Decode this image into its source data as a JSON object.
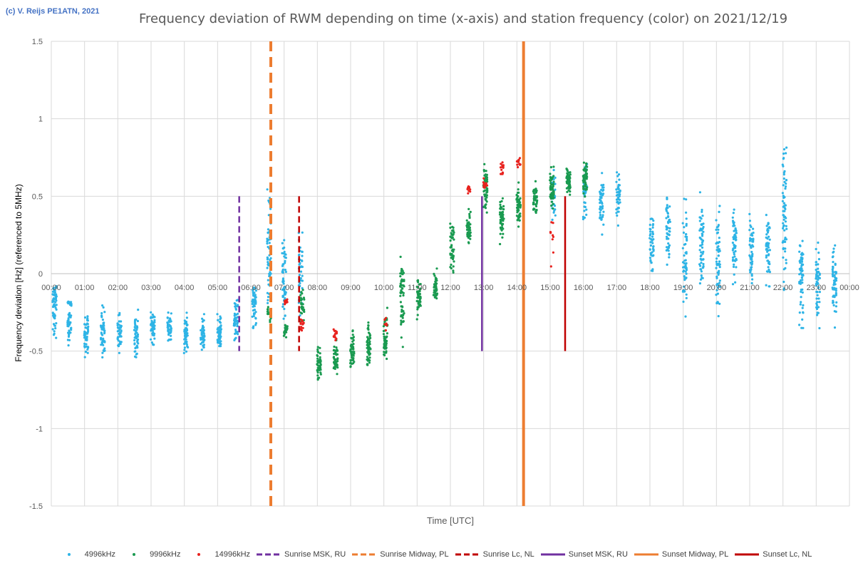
{
  "copyright": "(c) V. Reijs  PE1ATN, 2021",
  "chart_data": {
    "type": "scatter",
    "title": "Frequency deviation of RWM depending on time (x-axis) and station frequency (color) on 2021/12/19",
    "xlabel": "Time [UTC]",
    "ylabel": "Frequency deviation [Hz] (referenced to 5MHz)",
    "ylim": [
      -1.5,
      1.5
    ],
    "yticks": [
      "1.5",
      "1",
      "0.5",
      "0",
      "-0.5",
      "-1",
      "-1.5"
    ],
    "xlim_hours": [
      0,
      24
    ],
    "xticks": [
      "00:00",
      "01:00",
      "02:00",
      "03:00",
      "04:00",
      "05:00",
      "06:00",
      "07:00",
      "08:00",
      "09:00",
      "10:00",
      "11:00",
      "12:00",
      "13:00",
      "14:00",
      "15:00",
      "16:00",
      "17:00",
      "18:00",
      "19:00",
      "20:00",
      "21:00",
      "22:00",
      "23:00",
      "00:00"
    ],
    "grid": true,
    "legend_position": "bottom",
    "colors": {
      "4996kHz": "#2eb4e6",
      "9996kHz": "#1a9a50",
      "14996kHz": "#e8221e",
      "purple": "#7030a0",
      "orange": "#ed7d31",
      "darkred": "#c00000"
    },
    "series": [
      {
        "name": "4996kHz",
        "color": "#2eb4e6",
        "clusters": [
          {
            "t": 0.1,
            "mean": -0.2,
            "spread": 0.15,
            "n": 60
          },
          {
            "t": 0.55,
            "mean": -0.3,
            "spread": 0.12,
            "n": 50
          },
          {
            "t": 1.05,
            "mean": -0.38,
            "spread": 0.12,
            "n": 50
          },
          {
            "t": 1.55,
            "mean": -0.38,
            "spread": 0.12,
            "n": 50
          },
          {
            "t": 2.05,
            "mean": -0.38,
            "spread": 0.1,
            "n": 45
          },
          {
            "t": 2.55,
            "mean": -0.4,
            "spread": 0.12,
            "n": 45
          },
          {
            "t": 3.05,
            "mean": -0.35,
            "spread": 0.1,
            "n": 45
          },
          {
            "t": 3.55,
            "mean": -0.35,
            "spread": 0.08,
            "n": 40
          },
          {
            "t": 4.05,
            "mean": -0.38,
            "spread": 0.1,
            "n": 45
          },
          {
            "t": 4.55,
            "mean": -0.38,
            "spread": 0.1,
            "n": 45
          },
          {
            "t": 5.05,
            "mean": -0.38,
            "spread": 0.1,
            "n": 45
          },
          {
            "t": 5.55,
            "mean": -0.3,
            "spread": 0.12,
            "n": 50
          },
          {
            "t": 6.1,
            "mean": -0.2,
            "spread": 0.15,
            "n": 50
          },
          {
            "t": 6.55,
            "mean": 0.15,
            "spread": 0.25,
            "n": 60
          },
          {
            "t": 7.0,
            "mean": -0.05,
            "spread": 0.2,
            "n": 55
          },
          {
            "t": 7.5,
            "mean": 0.0,
            "spread": 0.2,
            "n": 40
          },
          {
            "t": 15.1,
            "mean": 0.5,
            "spread": 0.15,
            "n": 30
          },
          {
            "t": 16.05,
            "mean": 0.5,
            "spread": 0.15,
            "n": 40
          },
          {
            "t": 16.55,
            "mean": 0.45,
            "spread": 0.15,
            "n": 50
          },
          {
            "t": 17.05,
            "mean": 0.5,
            "spread": 0.12,
            "n": 45
          },
          {
            "t": 18.05,
            "mean": 0.2,
            "spread": 0.15,
            "n": 45
          },
          {
            "t": 18.55,
            "mean": 0.3,
            "spread": 0.2,
            "n": 50
          },
          {
            "t": 19.05,
            "mean": 0.1,
            "spread": 0.25,
            "n": 55
          },
          {
            "t": 19.55,
            "mean": 0.2,
            "spread": 0.25,
            "n": 60
          },
          {
            "t": 20.05,
            "mean": 0.1,
            "spread": 0.25,
            "n": 60
          },
          {
            "t": 20.55,
            "mean": 0.2,
            "spread": 0.2,
            "n": 55
          },
          {
            "t": 21.05,
            "mean": 0.15,
            "spread": 0.2,
            "n": 55
          },
          {
            "t": 21.55,
            "mean": 0.15,
            "spread": 0.2,
            "n": 55
          },
          {
            "t": 22.05,
            "mean": 0.4,
            "spread": 0.35,
            "n": 70
          },
          {
            "t": 22.55,
            "mean": -0.05,
            "spread": 0.25,
            "n": 60
          },
          {
            "t": 23.05,
            "mean": -0.05,
            "spread": 0.2,
            "n": 55
          },
          {
            "t": 23.55,
            "mean": -0.05,
            "spread": 0.2,
            "n": 55
          }
        ]
      },
      {
        "name": "9996kHz",
        "color": "#1a9a50",
        "clusters": [
          {
            "t": 6.55,
            "mean": -0.25,
            "spread": 0.06,
            "n": 20
          },
          {
            "t": 7.05,
            "mean": -0.37,
            "spread": 0.04,
            "n": 20
          },
          {
            "t": 7.55,
            "mean": -0.2,
            "spread": 0.08,
            "n": 30
          },
          {
            "t": 8.05,
            "mean": -0.58,
            "spread": 0.08,
            "n": 45
          },
          {
            "t": 8.55,
            "mean": -0.55,
            "spread": 0.1,
            "n": 50
          },
          {
            "t": 9.05,
            "mean": -0.5,
            "spread": 0.1,
            "n": 50
          },
          {
            "t": 9.55,
            "mean": -0.45,
            "spread": 0.12,
            "n": 55
          },
          {
            "t": 10.05,
            "mean": -0.4,
            "spread": 0.12,
            "n": 55
          },
          {
            "t": 10.55,
            "mean": -0.15,
            "spread": 0.2,
            "n": 60
          },
          {
            "t": 11.05,
            "mean": -0.15,
            "spread": 0.1,
            "n": 50
          },
          {
            "t": 11.55,
            "mean": -0.1,
            "spread": 0.08,
            "n": 45
          },
          {
            "t": 12.05,
            "mean": 0.15,
            "spread": 0.15,
            "n": 50
          },
          {
            "t": 12.55,
            "mean": 0.3,
            "spread": 0.08,
            "n": 45
          },
          {
            "t": 13.05,
            "mean": 0.55,
            "spread": 0.15,
            "n": 50
          },
          {
            "t": 13.55,
            "mean": 0.35,
            "spread": 0.1,
            "n": 50
          },
          {
            "t": 14.05,
            "mean": 0.45,
            "spread": 0.1,
            "n": 50
          },
          {
            "t": 14.55,
            "mean": 0.48,
            "spread": 0.08,
            "n": 45
          },
          {
            "t": 15.05,
            "mean": 0.55,
            "spread": 0.1,
            "n": 55
          },
          {
            "t": 15.55,
            "mean": 0.6,
            "spread": 0.08,
            "n": 55
          },
          {
            "t": 16.05,
            "mean": 0.62,
            "spread": 0.08,
            "n": 55
          }
        ]
      },
      {
        "name": "14996kHz",
        "color": "#e8221e",
        "clusters": [
          {
            "t": 7.05,
            "mean": -0.18,
            "spread": 0.02,
            "n": 12
          },
          {
            "t": 7.55,
            "mean": -0.33,
            "spread": 0.03,
            "n": 14
          },
          {
            "t": 8.55,
            "mean": -0.4,
            "spread": 0.04,
            "n": 14
          },
          {
            "t": 10.05,
            "mean": -0.33,
            "spread": 0.03,
            "n": 8
          },
          {
            "t": 12.55,
            "mean": 0.55,
            "spread": 0.04,
            "n": 10
          },
          {
            "t": 13.05,
            "mean": 0.58,
            "spread": 0.04,
            "n": 12
          },
          {
            "t": 13.55,
            "mean": 0.68,
            "spread": 0.05,
            "n": 14
          },
          {
            "t": 14.05,
            "mean": 0.72,
            "spread": 0.03,
            "n": 12
          },
          {
            "t": 15.05,
            "mean": 0.2,
            "spread": 0.15,
            "n": 10
          }
        ]
      }
    ],
    "event_lines": [
      {
        "name": "Sunrise MSK, RU",
        "time": 5.65,
        "style": "dashed",
        "color": "#7030a0",
        "y_from": -0.5,
        "y_to": 0.5
      },
      {
        "name": "Sunrise Midway, PL",
        "time": 6.6,
        "style": "dashed",
        "color": "#ed7d31",
        "y_from": -1.5,
        "y_to": 1.5
      },
      {
        "name": "Sunrise Lc, NL",
        "time": 7.45,
        "style": "dashed",
        "color": "#c00000",
        "y_from": -0.5,
        "y_to": 0.5
      },
      {
        "name": "Sunset MSK, RU",
        "time": 12.95,
        "style": "solid",
        "color": "#7030a0",
        "y_from": -0.5,
        "y_to": 0.5
      },
      {
        "name": "Sunset Midway, PL",
        "time": 14.2,
        "style": "solid",
        "color": "#ed7d31",
        "y_from": -1.5,
        "y_to": 1.5
      },
      {
        "name": "Sunset Lc, NL",
        "time": 15.45,
        "style": "solid",
        "color": "#c00000",
        "y_from": -0.5,
        "y_to": 0.5
      }
    ],
    "legend": [
      {
        "label": "4996kHz",
        "kind": "dot",
        "color": "#2eb4e6"
      },
      {
        "label": "9996kHz",
        "kind": "dot",
        "color": "#1a9a50"
      },
      {
        "label": "14996kHz",
        "kind": "dot",
        "color": "#e8221e"
      },
      {
        "label": "Sunrise MSK, RU",
        "kind": "dashed",
        "color": "#7030a0"
      },
      {
        "label": "Sunrise Midway, PL",
        "kind": "dashed",
        "color": "#ed7d31"
      },
      {
        "label": "Sunrise Lc, NL",
        "kind": "dashed",
        "color": "#c00000"
      },
      {
        "label": "Sunset MSK, RU",
        "kind": "solid",
        "color": "#7030a0"
      },
      {
        "label": "Sunset Midway, PL",
        "kind": "solid",
        "color": "#ed7d31"
      },
      {
        "label": "Sunset Lc, NL",
        "kind": "solid",
        "color": "#c00000"
      }
    ]
  }
}
